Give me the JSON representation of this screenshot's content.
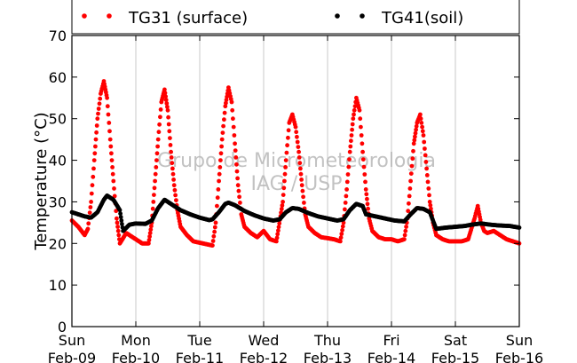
{
  "chart_data": {
    "type": "scatter",
    "ylabel": "Temperature (°C)",
    "xlabel": "",
    "ylim": [
      0,
      70
    ],
    "yticks": [
      0,
      10,
      20,
      30,
      40,
      50,
      60,
      70
    ],
    "xlim_days": [
      0,
      7
    ],
    "xticks": [
      {
        "day": "Sun",
        "date": "Feb-09"
      },
      {
        "day": "Mon",
        "date": "Feb-10"
      },
      {
        "day": "Tue",
        "date": "Feb-11"
      },
      {
        "day": "Wed",
        "date": "Feb-12"
      },
      {
        "day": "Thu",
        "date": "Feb-13"
      },
      {
        "day": "Fri",
        "date": "Feb-14"
      },
      {
        "day": "Sat",
        "date": "Feb-15"
      },
      {
        "day": "Sun",
        "date": "Feb-16"
      }
    ],
    "grid": "vertical",
    "legend_position": "top",
    "watermark": [
      "Grupo de Micrometeorologia",
      "IAG / USP"
    ],
    "series": [
      {
        "name": "TG31 (surface)",
        "color": "#ff0000",
        "marker": "dot",
        "points": [
          [
            0.0,
            25.5
          ],
          [
            0.1,
            24.0
          ],
          [
            0.2,
            22.0
          ],
          [
            0.25,
            23.5
          ],
          [
            0.3,
            30.0
          ],
          [
            0.35,
            40.0
          ],
          [
            0.4,
            50.0
          ],
          [
            0.45,
            56.0
          ],
          [
            0.5,
            59.0
          ],
          [
            0.55,
            55.0
          ],
          [
            0.6,
            45.0
          ],
          [
            0.65,
            35.0
          ],
          [
            0.7,
            26.0
          ],
          [
            0.75,
            20.0
          ],
          [
            0.85,
            22.5
          ],
          [
            0.95,
            21.5
          ],
          [
            1.1,
            20.0
          ],
          [
            1.2,
            20.0
          ],
          [
            1.25,
            25.0
          ],
          [
            1.3,
            35.0
          ],
          [
            1.35,
            45.0
          ],
          [
            1.4,
            54.0
          ],
          [
            1.45,
            57.0
          ],
          [
            1.5,
            52.0
          ],
          [
            1.55,
            42.0
          ],
          [
            1.6,
            34.0
          ],
          [
            1.65,
            28.0
          ],
          [
            1.7,
            24.0
          ],
          [
            1.8,
            22.0
          ],
          [
            1.9,
            20.5
          ],
          [
            2.2,
            19.5
          ],
          [
            2.25,
            25.0
          ],
          [
            2.3,
            35.0
          ],
          [
            2.35,
            45.0
          ],
          [
            2.4,
            53.0
          ],
          [
            2.45,
            57.5
          ],
          [
            2.5,
            54.0
          ],
          [
            2.55,
            44.0
          ],
          [
            2.6,
            34.0
          ],
          [
            2.65,
            27.0
          ],
          [
            2.7,
            24.0
          ],
          [
            2.8,
            22.5
          ],
          [
            2.9,
            21.5
          ],
          [
            3.0,
            23.0
          ],
          [
            3.1,
            21.0
          ],
          [
            3.2,
            20.5
          ],
          [
            3.3,
            30.0
          ],
          [
            3.35,
            40.0
          ],
          [
            3.4,
            49.0
          ],
          [
            3.45,
            51.0
          ],
          [
            3.5,
            48.0
          ],
          [
            3.55,
            42.0
          ],
          [
            3.6,
            34.0
          ],
          [
            3.65,
            27.0
          ],
          [
            3.7,
            24.0
          ],
          [
            3.8,
            22.5
          ],
          [
            3.9,
            21.5
          ],
          [
            4.1,
            21.0
          ],
          [
            4.2,
            20.5
          ],
          [
            4.25,
            25.0
          ],
          [
            4.3,
            33.0
          ],
          [
            4.35,
            42.0
          ],
          [
            4.4,
            50.0
          ],
          [
            4.45,
            55.0
          ],
          [
            4.5,
            52.0
          ],
          [
            4.55,
            42.0
          ],
          [
            4.6,
            33.0
          ],
          [
            4.65,
            26.0
          ],
          [
            4.7,
            23.0
          ],
          [
            4.8,
            21.5
          ],
          [
            4.9,
            21.0
          ],
          [
            5.0,
            21.0
          ],
          [
            5.1,
            20.5
          ],
          [
            5.2,
            21.0
          ],
          [
            5.25,
            26.0
          ],
          [
            5.3,
            35.0
          ],
          [
            5.35,
            44.0
          ],
          [
            5.4,
            49.0
          ],
          [
            5.45,
            51.0
          ],
          [
            5.5,
            46.0
          ],
          [
            5.55,
            38.0
          ],
          [
            5.6,
            30.0
          ],
          [
            5.65,
            25.0
          ],
          [
            5.7,
            22.0
          ],
          [
            5.8,
            21.0
          ],
          [
            5.9,
            20.5
          ],
          [
            6.1,
            20.5
          ],
          [
            6.2,
            21.0
          ],
          [
            6.3,
            26.0
          ],
          [
            6.35,
            29.0
          ],
          [
            6.4,
            25.0
          ],
          [
            6.45,
            23.0
          ],
          [
            6.5,
            22.5
          ],
          [
            6.6,
            23.0
          ],
          [
            6.7,
            22.0
          ],
          [
            6.8,
            21.0
          ],
          [
            6.9,
            20.5
          ],
          [
            7.0,
            20.0
          ]
        ]
      },
      {
        "name": "TG41(soil)",
        "color": "#000000",
        "marker": "dot",
        "points": [
          [
            0.0,
            27.5
          ],
          [
            0.1,
            27.0
          ],
          [
            0.2,
            26.5
          ],
          [
            0.3,
            26.2
          ],
          [
            0.4,
            27.5
          ],
          [
            0.5,
            30.5
          ],
          [
            0.55,
            31.5
          ],
          [
            0.65,
            30.5
          ],
          [
            0.75,
            28.0
          ],
          [
            0.8,
            23.0
          ],
          [
            0.9,
            24.5
          ],
          [
            1.0,
            24.8
          ],
          [
            1.15,
            24.7
          ],
          [
            1.25,
            25.5
          ],
          [
            1.35,
            28.5
          ],
          [
            1.45,
            30.5
          ],
          [
            1.55,
            29.5
          ],
          [
            1.7,
            28.0
          ],
          [
            1.85,
            27.0
          ],
          [
            2.0,
            26.2
          ],
          [
            2.15,
            25.6
          ],
          [
            2.2,
            25.8
          ],
          [
            2.3,
            27.5
          ],
          [
            2.4,
            29.5
          ],
          [
            2.45,
            29.8
          ],
          [
            2.55,
            29.2
          ],
          [
            2.7,
            27.8
          ],
          [
            2.85,
            26.8
          ],
          [
            3.0,
            26.0
          ],
          [
            3.15,
            25.5
          ],
          [
            3.25,
            25.8
          ],
          [
            3.35,
            27.5
          ],
          [
            3.45,
            28.5
          ],
          [
            3.55,
            28.3
          ],
          [
            3.7,
            27.3
          ],
          [
            3.85,
            26.5
          ],
          [
            4.0,
            26.0
          ],
          [
            4.15,
            25.5
          ],
          [
            4.25,
            25.8
          ],
          [
            4.35,
            28.0
          ],
          [
            4.45,
            29.5
          ],
          [
            4.55,
            29.0
          ],
          [
            4.6,
            27.0
          ],
          [
            4.75,
            26.5
          ],
          [
            4.9,
            26.0
          ],
          [
            5.05,
            25.5
          ],
          [
            5.2,
            25.3
          ],
          [
            5.3,
            27.0
          ],
          [
            5.4,
            28.5
          ],
          [
            5.5,
            28.3
          ],
          [
            5.6,
            27.5
          ],
          [
            5.7,
            23.5
          ],
          [
            5.85,
            23.8
          ],
          [
            6.0,
            24.0
          ],
          [
            6.15,
            24.2
          ],
          [
            6.25,
            24.5
          ],
          [
            6.4,
            24.8
          ],
          [
            6.55,
            24.5
          ],
          [
            6.7,
            24.3
          ],
          [
            6.85,
            24.2
          ],
          [
            7.0,
            23.8
          ]
        ]
      }
    ]
  }
}
